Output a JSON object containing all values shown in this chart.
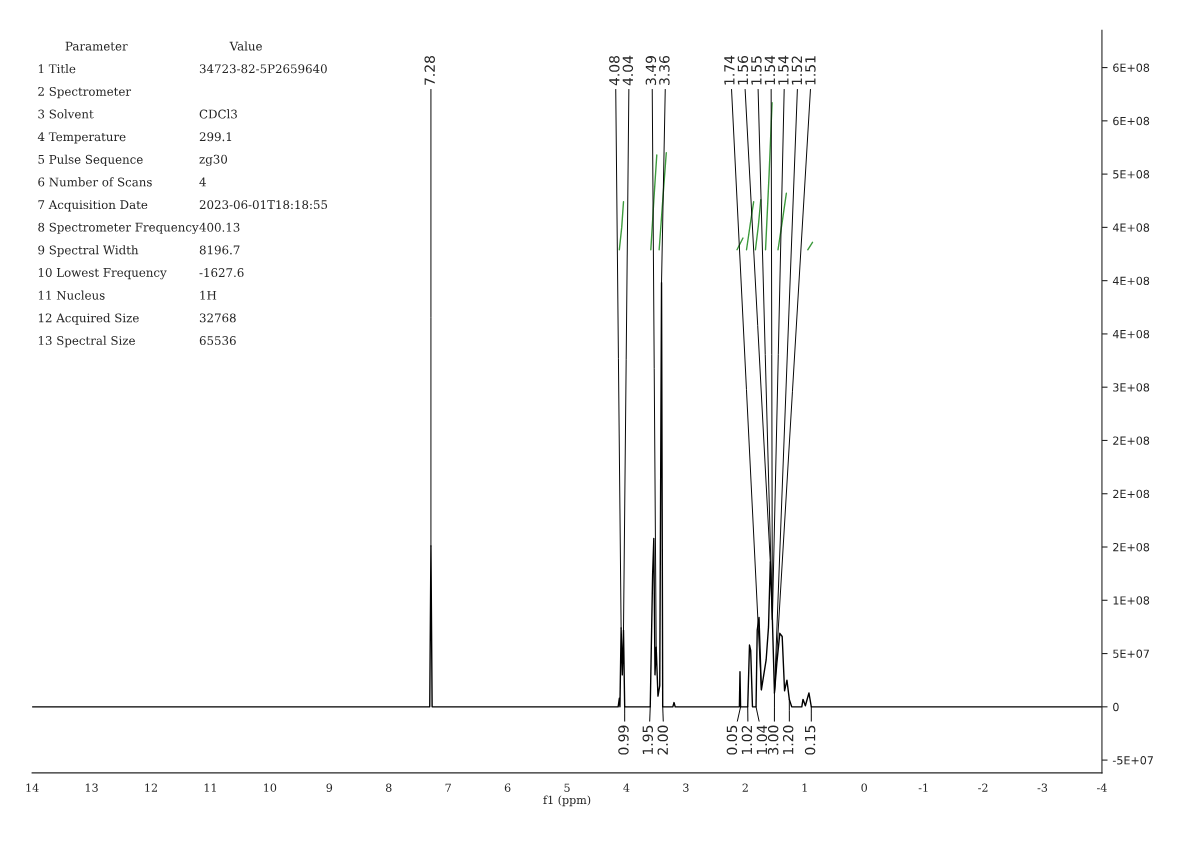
{
  "chart_data": {
    "type": "line",
    "xlabel": "f1 (ppm)",
    "xlim": [
      14,
      -4
    ],
    "xticks": [
      14,
      13,
      12,
      11,
      10,
      9,
      8,
      7,
      6,
      5,
      4,
      3,
      2,
      1,
      0,
      -1,
      -2,
      -3,
      -4
    ],
    "ylim": [
      -62000000,
      635000000
    ],
    "yticks": [
      {
        "value": -50000000,
        "label": "-5E+07"
      },
      0,
      {
        "value": 50000000,
        "label": "5E+07"
      },
      {
        "value": 100000000,
        "label": "1E+08"
      },
      {
        "value": 150000000,
        "label": "2E+08"
      },
      {
        "value": 200000000,
        "label": "2E+08"
      },
      {
        "value": 250000000,
        "label": "2E+08"
      },
      {
        "value": 300000000,
        "label": "3E+08"
      },
      {
        "value": 350000000,
        "label": "4E+08"
      },
      {
        "value": 400000000,
        "label": "4E+08"
      },
      {
        "value": 450000000,
        "label": "4E+08"
      },
      {
        "value": 500000000,
        "label": "5E+08"
      },
      {
        "value": 550000000,
        "label": "6E+08"
      },
      {
        "value": 600000000,
        "label": "6E+08"
      }
    ],
    "grid": false,
    "legend": false,
    "marker": "none",
    "line_style": "solid",
    "series": [
      {
        "color": "#000000",
        "x": [
          14,
          7.31,
          7.29,
          7.27,
          4.14,
          4.12,
          4.11,
          4.09,
          4.07,
          4.05,
          4.03,
          3.6,
          3.56,
          3.54,
          3.52,
          3.5,
          3.47,
          3.44,
          3.41,
          3.39,
          3.22,
          3.2,
          3.18,
          2.1,
          2.09,
          2.08,
          1.96,
          1.93,
          1.91,
          1.88,
          1.82,
          1.8,
          1.77,
          1.73,
          1.65,
          1.61,
          1.58,
          1.545,
          1.51,
          1.47,
          1.42,
          1.38,
          1.34,
          1.3,
          1.26,
          1.22,
          1.05,
          1.03,
          0.99,
          0.93,
          0.89,
          -4
        ],
        "values": [
          0,
          0,
          151000000,
          0,
          0,
          8000000,
          0,
          74000000,
          30000000,
          72000000,
          0,
          0,
          124000000,
          158000000,
          30000000,
          56000000,
          10000000,
          20000000,
          398000000,
          0,
          0,
          4000000,
          0,
          0,
          33000000,
          0,
          0,
          58000000,
          53000000,
          0,
          0,
          72000000,
          84000000,
          16000000,
          44000000,
          75000000,
          136000000,
          82000000,
          13000000,
          41000000,
          69000000,
          66000000,
          15000000,
          25000000,
          7000000,
          0,
          0,
          7000000,
          1000000,
          13000000,
          0,
          0
        ]
      },
      {
        "color": "#3c9a3c",
        "x": [
          4.12,
          4.08,
          4.05,
          null,
          3.59,
          3.54,
          3.49,
          null,
          3.45,
          3.39,
          3.33,
          null,
          2.14,
          2.04,
          null,
          1.98,
          1.92,
          1.86,
          null,
          1.83,
          1.78,
          1.74,
          null,
          1.66,
          1.6,
          1.55,
          null,
          1.45,
          1.38,
          1.31,
          null,
          0.95,
          0.87
        ],
        "values": [
          429000000,
          450000000,
          474000000,
          null,
          429000000,
          475000000,
          518000000,
          null,
          429000000,
          475000000,
          520000000,
          null,
          429000000,
          440000000,
          null,
          429000000,
          452000000,
          474000000,
          null,
          429000000,
          452000000,
          476000000,
          null,
          429000000,
          500000000,
          567000000,
          null,
          429000000,
          455000000,
          482000000,
          null,
          429000000,
          436000000
        ]
      }
    ],
    "annotations": [
      "Parameter\tValue",
      "1 Title\t34723-82-5P2659640",
      "2 Spectrometer",
      "3 Solvent\tCDCl3",
      "4 Temperature\t299.1",
      "5 Pulse Sequence\tzg30",
      "6 Number of Scans\t4",
      "7 Acquisition Date\t2023-06-01T18:18:55",
      "8 Spectrometer Frequency\t400.13",
      "9 Spectral Width\t8196.7",
      "10 Lowest Frequency\t-1627.6",
      "11 Nucleus\t1H",
      "12 Acquired Size\t32768",
      "13 Spectral Size\t65536",
      {
        "text": "7.28",
        "x": 7.29,
        "y": 151000000
      },
      {
        "text": "4.08",
        "x": 4.09,
        "y": 74000000
      },
      {
        "text": "4.04",
        "x": 4.05,
        "y": 72000000
      },
      {
        "text": "3.49",
        "x": 3.5,
        "y": 56000000
      },
      {
        "text": "3.36",
        "x": 3.41,
        "y": 398000000
      },
      {
        "text": "1.74",
        "x": 1.73,
        "y": 16000000
      },
      {
        "text": "1.56",
        "x": 1.58,
        "y": 136000000
      },
      {
        "text": "1.55",
        "x": 1.545,
        "y": 82000000
      },
      {
        "text": "1.54",
        "x": 1.545,
        "y": 82000000
      },
      {
        "text": "1.54",
        "x": 1.545,
        "y": 82000000
      },
      {
        "text": "1.52",
        "x": 1.51,
        "y": 13000000
      },
      {
        "text": "1.51",
        "x": 1.51,
        "y": 13000000
      },
      {
        "text": "0.99",
        "x": 4.03,
        "y": 0
      },
      {
        "text": "1.95",
        "x": 3.6,
        "y": 0
      },
      {
        "text": "2.00",
        "x": 3.39,
        "y": 0
      },
      {
        "text": "0.05",
        "x": 2.08,
        "y": 0
      },
      {
        "text": "1.02",
        "x": 1.96,
        "y": 0
      },
      {
        "text": "1.04",
        "x": 1.82,
        "y": 0
      },
      {
        "text": "3.00",
        "x": 1.51,
        "y": 13000000
      },
      {
        "text": "1.20",
        "x": 1.26,
        "y": 7000000
      },
      {
        "text": "0.15",
        "x": 0.89,
        "y": 0
      }
    ]
  }
}
